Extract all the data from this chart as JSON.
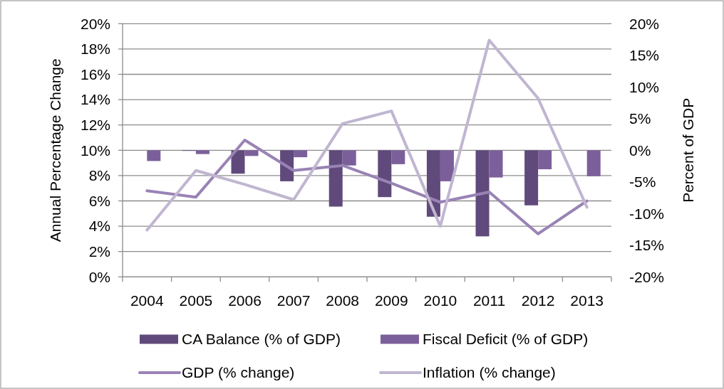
{
  "chart_data": {
    "type": "bar",
    "categories": [
      "2004",
      "2005",
      "2006",
      "2007",
      "2008",
      "2009",
      "2010",
      "2011",
      "2012",
      "2013"
    ],
    "series": [
      {
        "name": "CA Balance (% of GDP)",
        "axis": "y2",
        "color": "#604a7b",
        "values": [
          null,
          -0.1,
          -3.7,
          -4.9,
          -8.9,
          -7.4,
          -10.5,
          -13.6,
          -8.7,
          null
        ]
      },
      {
        "name": "Fiscal Deficit (% of GDP)",
        "axis": "y2",
        "color": "#7b5f9a",
        "values": [
          -1.7,
          -0.6,
          -0.9,
          -1.1,
          -2.4,
          -2.2,
          -4.9,
          -4.3,
          -3.0,
          -4.1
        ]
      },
      {
        "name": "GDP (% change)",
        "type": "line",
        "color": "#9983b5",
        "values": [
          6.8,
          6.3,
          10.8,
          8.4,
          8.8,
          7.4,
          5.9,
          6.7,
          3.4,
          6.0
        ]
      },
      {
        "name": "Inflation (% change)",
        "type": "line",
        "color": "#c0b6d1",
        "values": [
          3.7,
          8.4,
          7.3,
          6.1,
          12.1,
          13.1,
          4.0,
          18.7,
          14.1,
          5.5
        ]
      }
    ],
    "ylabel": "Annual Percentage Change",
    "y2label": "Percent of GDP",
    "ylim": [
      0,
      20
    ],
    "yticks": [
      {
        "value": 0,
        "label": "0%"
      },
      {
        "value": 2,
        "label": "2%"
      },
      {
        "value": 4,
        "label": "4%"
      },
      {
        "value": 6,
        "label": "6%"
      },
      {
        "value": 8,
        "label": "8%"
      },
      {
        "value": 10,
        "label": "10%"
      },
      {
        "value": 12,
        "label": "12%"
      },
      {
        "value": 14,
        "label": "14%"
      },
      {
        "value": 16,
        "label": "16%"
      },
      {
        "value": 18,
        "label": "18%"
      },
      {
        "value": 20,
        "label": "20%"
      }
    ],
    "y2lim": [
      -20,
      20
    ],
    "y2ticks": [
      {
        "value": -20,
        "label": "-20%"
      },
      {
        "value": -15,
        "label": "-15%"
      },
      {
        "value": -10,
        "label": "-10%"
      },
      {
        "value": -5,
        "label": "-5%"
      },
      {
        "value": 0,
        "label": "0%"
      },
      {
        "value": 5,
        "label": "5%"
      },
      {
        "value": 10,
        "label": "10%"
      },
      {
        "value": 15,
        "label": "15%"
      },
      {
        "value": 20,
        "label": "20%"
      }
    ],
    "grid": "y",
    "legend": "bottom"
  }
}
